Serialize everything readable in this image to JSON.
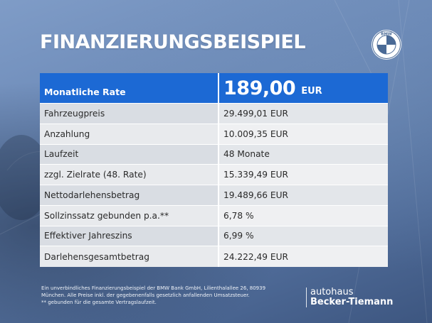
{
  "title": "FINANZIERUNGSBEISPIEL",
  "brand_logo_letters": "BMW",
  "colors": {
    "accent": "#1c69d4",
    "background": "#6886b4"
  },
  "table": {
    "header": {
      "label": "Monatliche Rate",
      "value": "189,00",
      "unit": "EUR"
    },
    "rows": [
      {
        "label": "Fahrzeugpreis",
        "value": "29.499,01 EUR"
      },
      {
        "label": "Anzahlung",
        "value": "10.009,35 EUR"
      },
      {
        "label": "Laufzeit",
        "value": "48 Monate"
      },
      {
        "label": "zzgl. Zielrate (48. Rate)",
        "value": "15.339,49 EUR"
      },
      {
        "label": "Nettodarlehensbetrag",
        "value": "19.489,66 EUR"
      },
      {
        "label": "Sollzinssatz gebunden p.a.**",
        "value": "6,78 %"
      },
      {
        "label": "Effektiver Jahreszins",
        "value": "6,99 %"
      },
      {
        "label": "Darlehensgesamtbetrag",
        "value": "24.222,49 EUR"
      }
    ]
  },
  "footnote": {
    "line1": "Ein unverbindliches Finanzierungsbeispiel der BMW Bank GmbH, Lilienthalallee 26, 80939",
    "line2": "München. Alle Preise inkl. der gegebenenfalls gesetzlich anfallenden Umsatzsteuer.",
    "line3": "** gebunden für die gesamte Vertragslaufzeit."
  },
  "dealer": {
    "line1": "autohaus",
    "line2": "Becker-Tiemann"
  }
}
